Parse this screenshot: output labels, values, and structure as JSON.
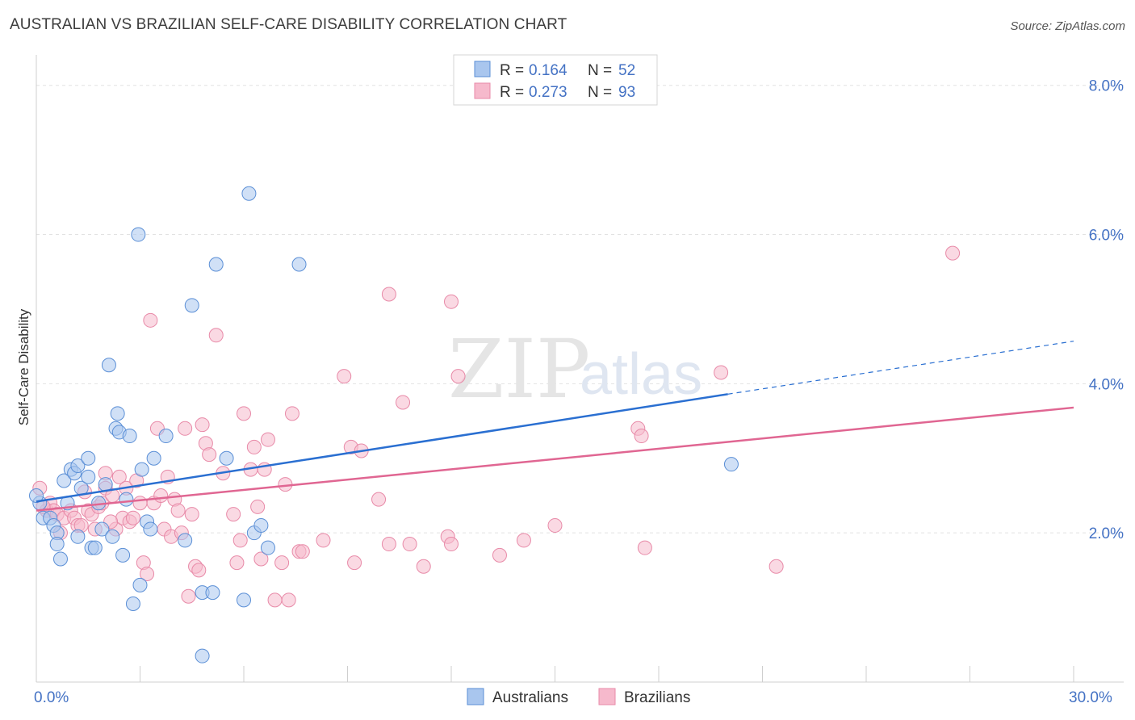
{
  "header": {
    "title": "AUSTRALIAN VS BRAZILIAN SELF-CARE DISABILITY CORRELATION CHART",
    "source": "Source: ZipAtlas.com"
  },
  "watermark": {
    "zip": "ZIP",
    "atlas": "atlas"
  },
  "legend": {
    "rows": [
      {
        "r_label": "R =",
        "r_value": "0.164",
        "n_label": "N =",
        "n_value": "52"
      },
      {
        "r_label": "R =",
        "r_value": "0.273",
        "n_label": "N =",
        "n_value": "93"
      }
    ]
  },
  "colors": {
    "australians_fill": "#a9c6ee",
    "australians_stroke": "#5b8fd6",
    "australians_line": "#2a6fd1",
    "brazilians_fill": "#f6b9cc",
    "brazilians_stroke": "#e88aa8",
    "brazilians_line": "#e06692",
    "axis_text": "#4472c4"
  },
  "chart_data": {
    "type": "scatter",
    "title": "AUSTRALIAN VS BRAZILIAN SELF-CARE DISABILITY CORRELATION CHART",
    "xlabel": "",
    "ylabel": "Self-Care Disability",
    "xlim": [
      0,
      30
    ],
    "ylim": [
      0,
      8.3
    ],
    "x_tick_labels": [
      "0.0%",
      "30.0%"
    ],
    "y_ticks": [
      2,
      4,
      6,
      8
    ],
    "y_tick_labels": [
      "2.0%",
      "4.0%",
      "6.0%",
      "8.0%"
    ],
    "grid": true,
    "legend_position": "bottom",
    "series": [
      {
        "name": "Australians",
        "trend": {
          "x_solid": [
            0,
            20
          ],
          "y_solid": [
            2.42,
            3.86
          ],
          "x_dashed": [
            20,
            30
          ],
          "y_dashed": [
            3.86,
            4.57
          ]
        },
        "points": [
          [
            0.1,
            2.4
          ],
          [
            0.2,
            2.2
          ],
          [
            0.4,
            2.2
          ],
          [
            0.5,
            2.1
          ],
          [
            0.6,
            2.0
          ],
          [
            0.6,
            1.85
          ],
          [
            0.7,
            1.65
          ],
          [
            0.8,
            2.7
          ],
          [
            0.9,
            2.4
          ],
          [
            1.0,
            2.85
          ],
          [
            1.1,
            2.8
          ],
          [
            1.2,
            2.9
          ],
          [
            1.2,
            1.95
          ],
          [
            1.3,
            2.6
          ],
          [
            1.5,
            3.0
          ],
          [
            1.5,
            2.75
          ],
          [
            1.6,
            1.8
          ],
          [
            1.7,
            1.8
          ],
          [
            1.8,
            2.4
          ],
          [
            1.9,
            2.05
          ],
          [
            2.0,
            2.65
          ],
          [
            2.1,
            4.25
          ],
          [
            2.2,
            1.95
          ],
          [
            2.3,
            3.4
          ],
          [
            2.35,
            3.6
          ],
          [
            2.4,
            3.35
          ],
          [
            2.5,
            1.7
          ],
          [
            2.6,
            2.45
          ],
          [
            2.7,
            3.3
          ],
          [
            2.8,
            1.05
          ],
          [
            2.95,
            6.0
          ],
          [
            3.0,
            1.3
          ],
          [
            3.05,
            2.85
          ],
          [
            3.2,
            2.15
          ],
          [
            3.3,
            2.05
          ],
          [
            3.4,
            3.0
          ],
          [
            3.75,
            3.3
          ],
          [
            4.3,
            1.9
          ],
          [
            4.5,
            5.05
          ],
          [
            4.8,
            1.2
          ],
          [
            5.1,
            1.2
          ],
          [
            5.2,
            5.6
          ],
          [
            5.5,
            3.0
          ],
          [
            6.0,
            1.1
          ],
          [
            6.15,
            6.55
          ],
          [
            6.3,
            2.0
          ],
          [
            6.5,
            2.1
          ],
          [
            6.7,
            1.8
          ],
          [
            7.6,
            5.6
          ],
          [
            20.1,
            2.92
          ],
          [
            4.8,
            0.35
          ],
          [
            0.0,
            2.5
          ]
        ]
      },
      {
        "name": "Brazilians",
        "trend": {
          "x_solid": [
            0,
            30
          ],
          "y_solid": [
            2.3,
            3.68
          ]
        },
        "points": [
          [
            0.1,
            2.6
          ],
          [
            0.3,
            2.3
          ],
          [
            0.4,
            2.4
          ],
          [
            0.5,
            2.3
          ],
          [
            0.6,
            2.25
          ],
          [
            0.7,
            2.0
          ],
          [
            0.8,
            2.2
          ],
          [
            1.0,
            2.3
          ],
          [
            1.1,
            2.2
          ],
          [
            1.2,
            2.1
          ],
          [
            1.3,
            2.1
          ],
          [
            1.5,
            2.3
          ],
          [
            1.6,
            2.25
          ],
          [
            1.7,
            2.05
          ],
          [
            1.8,
            2.35
          ],
          [
            1.9,
            2.4
          ],
          [
            2.0,
            2.6
          ],
          [
            2.0,
            2.8
          ],
          [
            2.2,
            2.5
          ],
          [
            2.3,
            2.05
          ],
          [
            2.4,
            2.75
          ],
          [
            2.5,
            2.2
          ],
          [
            2.6,
            2.6
          ],
          [
            2.7,
            2.15
          ],
          [
            2.8,
            2.2
          ],
          [
            2.9,
            2.7
          ],
          [
            3.0,
            2.4
          ],
          [
            3.1,
            1.6
          ],
          [
            3.2,
            1.45
          ],
          [
            3.3,
            4.85
          ],
          [
            3.4,
            2.4
          ],
          [
            3.5,
            3.4
          ],
          [
            3.6,
            2.5
          ],
          [
            3.7,
            2.05
          ],
          [
            3.8,
            2.75
          ],
          [
            3.9,
            1.95
          ],
          [
            4.0,
            2.45
          ],
          [
            4.1,
            2.3
          ],
          [
            4.2,
            2.0
          ],
          [
            4.3,
            3.4
          ],
          [
            4.4,
            1.15
          ],
          [
            4.5,
            2.25
          ],
          [
            4.6,
            1.55
          ],
          [
            4.8,
            3.45
          ],
          [
            4.9,
            3.2
          ],
          [
            5.0,
            3.05
          ],
          [
            5.2,
            4.65
          ],
          [
            5.4,
            2.8
          ],
          [
            5.7,
            2.25
          ],
          [
            5.8,
            1.6
          ],
          [
            5.9,
            1.9
          ],
          [
            6.0,
            3.6
          ],
          [
            6.2,
            2.85
          ],
          [
            6.3,
            3.15
          ],
          [
            6.4,
            2.35
          ],
          [
            6.5,
            1.65
          ],
          [
            6.6,
            2.85
          ],
          [
            6.7,
            3.25
          ],
          [
            6.9,
            1.1
          ],
          [
            7.1,
            1.6
          ],
          [
            7.2,
            2.65
          ],
          [
            7.3,
            1.1
          ],
          [
            7.4,
            3.6
          ],
          [
            7.6,
            1.75
          ],
          [
            7.7,
            1.75
          ],
          [
            8.3,
            1.9
          ],
          [
            8.9,
            4.1
          ],
          [
            9.2,
            1.6
          ],
          [
            9.1,
            3.15
          ],
          [
            9.4,
            3.1
          ],
          [
            9.9,
            2.45
          ],
          [
            10.2,
            1.85
          ],
          [
            10.2,
            5.2
          ],
          [
            10.6,
            3.75
          ],
          [
            10.8,
            1.85
          ],
          [
            11.2,
            1.55
          ],
          [
            11.9,
            1.95
          ],
          [
            12.0,
            1.85
          ],
          [
            12.0,
            5.1
          ],
          [
            12.2,
            4.1
          ],
          [
            13.4,
            1.7
          ],
          [
            14.1,
            1.9
          ],
          [
            15.0,
            2.1
          ],
          [
            17.4,
            3.4
          ],
          [
            17.5,
            3.3
          ],
          [
            17.6,
            1.8
          ],
          [
            19.8,
            4.15
          ],
          [
            21.4,
            1.55
          ],
          [
            26.5,
            5.75
          ],
          [
            0.2,
            2.35
          ],
          [
            1.4,
            2.55
          ],
          [
            2.15,
            2.15
          ],
          [
            4.7,
            1.5
          ]
        ]
      }
    ]
  },
  "bottom_legend": {
    "items": [
      "Australians",
      "Brazilians"
    ]
  }
}
